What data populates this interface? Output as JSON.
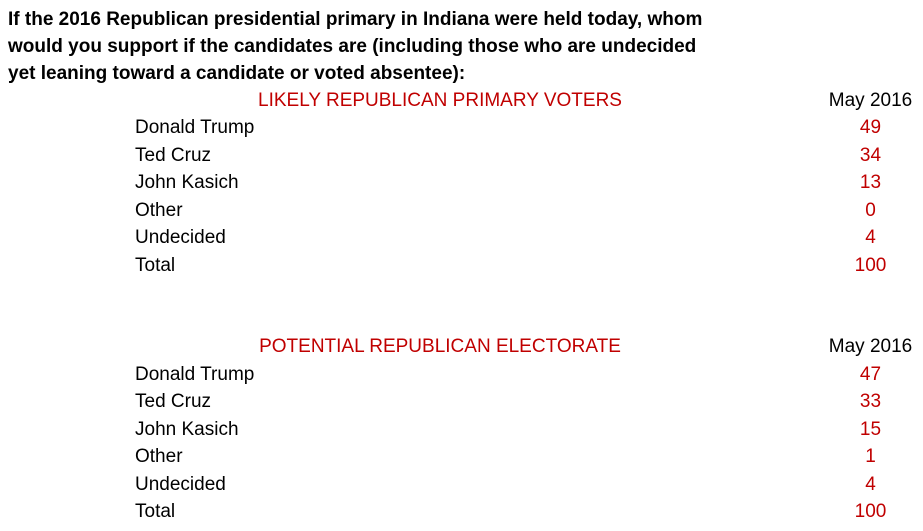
{
  "colors": {
    "accent_red": "#C00000",
    "text_black": "#000000",
    "background": "#FFFFFF"
  },
  "question": {
    "lines": [
      "If the 2016 Republican presidential primary in Indiana were held today, whom",
      "would you support if the candidates are (including those who are undecided",
      "yet leaning toward a candidate or voted absentee):"
    ]
  },
  "tables": [
    {
      "title": "LIKELY REPUBLICAN PRIMARY VOTERS",
      "column_header": "May 2016",
      "rows": [
        {
          "label": "Donald Trump",
          "value": "49"
        },
        {
          "label": "Ted Cruz",
          "value": "34"
        },
        {
          "label": "John Kasich",
          "value": "13"
        },
        {
          "label": "Other",
          "value": "0"
        },
        {
          "label": "Undecided",
          "value": "4"
        },
        {
          "label": "Total",
          "value": "100"
        }
      ]
    },
    {
      "title": "POTENTIAL REPUBLICAN ELECTORATE",
      "column_header": "May 2016",
      "rows": [
        {
          "label": "Donald Trump",
          "value": "47"
        },
        {
          "label": "Ted Cruz",
          "value": "33"
        },
        {
          "label": "John Kasich",
          "value": "15"
        },
        {
          "label": "Other",
          "value": "1"
        },
        {
          "label": "Undecided",
          "value": "4"
        },
        {
          "label": "Total",
          "value": "100"
        }
      ]
    }
  ]
}
